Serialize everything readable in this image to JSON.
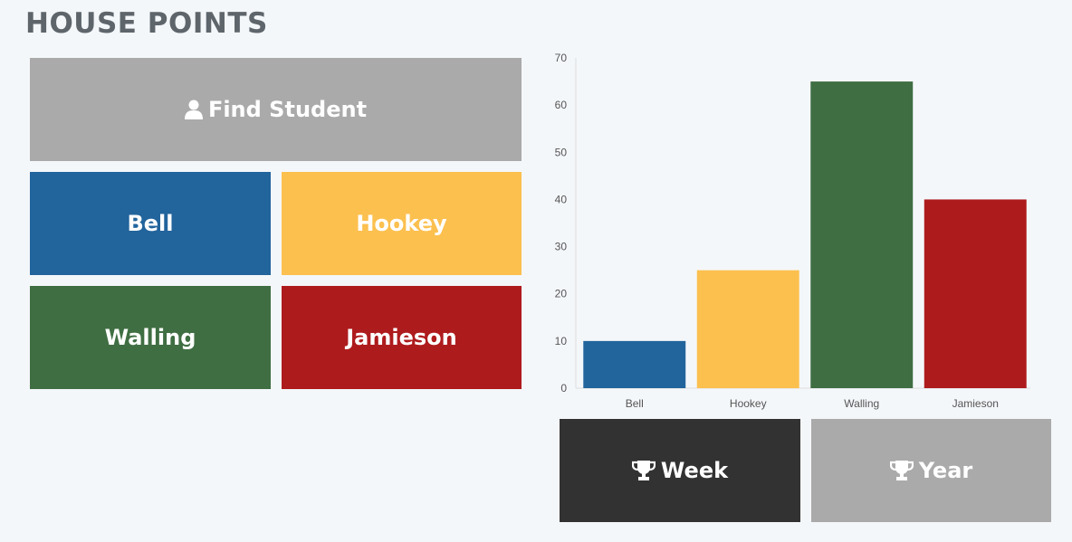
{
  "page": {
    "title": "HOUSE POINTS"
  },
  "colors": {
    "background": "#f4f7fa",
    "find": "#aaaaaa",
    "bell": "#22649c",
    "hookey": "#fcc04f",
    "walling": "#3f6e42",
    "jamieson": "#ae1b1d",
    "week": "#323232",
    "year": "#aaaaaa"
  },
  "buttons": {
    "find_student": {
      "label": "Find Student",
      "icon": "user-icon"
    },
    "week": {
      "label": "Week",
      "icon": "trophy-icon"
    },
    "year": {
      "label": "Year",
      "icon": "trophy-icon"
    }
  },
  "houses": [
    {
      "key": "bell",
      "label": "Bell"
    },
    {
      "key": "hookey",
      "label": "Hookey"
    },
    {
      "key": "walling",
      "label": "Walling"
    },
    {
      "key": "jamieson",
      "label": "Jamieson"
    }
  ],
  "chart_data": {
    "type": "bar",
    "title": "",
    "xlabel": "",
    "ylabel": "",
    "categories": [
      "Bell",
      "Hookey",
      "Walling",
      "Jamieson"
    ],
    "values": [
      10,
      25,
      65,
      40
    ],
    "colors": [
      "#22649c",
      "#fcc04f",
      "#3f6e42",
      "#ae1b1d"
    ],
    "ylim": [
      0,
      70
    ],
    "yticks": [
      0,
      10,
      20,
      30,
      40,
      50,
      60,
      70
    ],
    "grid": false,
    "legend": "none"
  }
}
